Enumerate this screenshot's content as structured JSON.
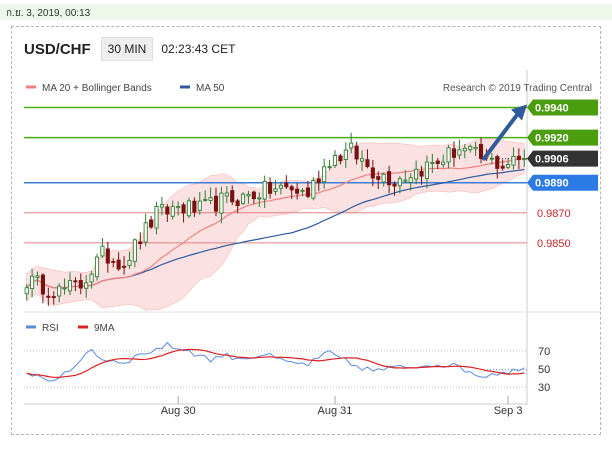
{
  "topbar": {
    "date": "ก.ย. 3, 2019, 00:13"
  },
  "header": {
    "symbol": "USD/CHF",
    "timeframe": "30 MIN",
    "time": "02:23:43 CET"
  },
  "colors": {
    "up": "#2e7d32",
    "down": "#7a1010",
    "ma20": "#f08080",
    "ma50": "#2d5b9e",
    "band_fill": "#fbdede",
    "resistance": "#4caf13",
    "support": "#e08080",
    "pivot": "#3b7dd8",
    "current": "#333333",
    "arrow": "#2f5b9c",
    "rsi": "#5b8be0",
    "rsi_ma": "#e02020"
  },
  "chart_data": [
    {
      "type": "line",
      "legend": [
        {
          "name": "MA 20 + Bollinger Bands",
          "color": "#f08080"
        },
        {
          "name": "MA 50",
          "color": "#2d5b9e"
        }
      ],
      "attribution": "Research © 2019 Trading Central",
      "x_ticks": [
        {
          "label": "Aug 30",
          "bar": 28
        },
        {
          "label": "Aug 31",
          "bar": 57
        },
        {
          "label": "Sep 3",
          "bar": 89
        }
      ],
      "ylim": [
        0.9812,
        0.9953
      ],
      "levels": [
        {
          "value": 0.994,
          "label": "0.9940",
          "kind": "resistance"
        },
        {
          "value": 0.992,
          "label": "0.9920",
          "kind": "resistance"
        },
        {
          "value": 0.9906,
          "label": "0.9906",
          "kind": "current"
        },
        {
          "value": 0.989,
          "label": "0.9890",
          "kind": "pivot"
        },
        {
          "value": 0.987,
          "label": "0.9870",
          "kind": "support"
        },
        {
          "value": 0.985,
          "label": "0.9850",
          "kind": "support"
        }
      ],
      "close_waypoints": [
        [
          0,
          0.9825
        ],
        [
          6,
          0.9818
        ],
        [
          10,
          0.9822
        ],
        [
          14,
          0.9842
        ],
        [
          18,
          0.9837
        ],
        [
          24,
          0.9869
        ],
        [
          28,
          0.9874
        ],
        [
          32,
          0.9872
        ],
        [
          36,
          0.9878
        ],
        [
          40,
          0.988
        ],
        [
          44,
          0.9885
        ],
        [
          48,
          0.9886
        ],
        [
          52,
          0.9883
        ],
        [
          56,
          0.9906
        ],
        [
          60,
          0.9911
        ],
        [
          64,
          0.9898
        ],
        [
          68,
          0.9892
        ],
        [
          72,
          0.9898
        ],
        [
          76,
          0.9904
        ],
        [
          80,
          0.9913
        ],
        [
          84,
          0.9906
        ],
        [
          88,
          0.9902
        ],
        [
          92,
          0.9906
        ]
      ],
      "projection": {
        "from_bar": 92,
        "from_value": 0.9906,
        "to_value": 0.994
      }
    },
    {
      "type": "line",
      "legend": [
        {
          "name": "RSI",
          "color": "#5b8be0"
        },
        {
          "name": "9MA",
          "color": "#e02020"
        }
      ],
      "ylim": [
        20,
        82
      ],
      "y_ticks": [
        70,
        50,
        30
      ],
      "rsi_waypoints": [
        [
          0,
          47
        ],
        [
          4,
          38
        ],
        [
          8,
          45
        ],
        [
          10,
          62
        ],
        [
          12,
          72
        ],
        [
          14,
          60
        ],
        [
          18,
          58
        ],
        [
          22,
          68
        ],
        [
          26,
          76
        ],
        [
          30,
          70
        ],
        [
          34,
          60
        ],
        [
          36,
          65
        ],
        [
          40,
          62
        ],
        [
          44,
          66
        ],
        [
          48,
          57
        ],
        [
          52,
          55
        ],
        [
          56,
          68
        ],
        [
          60,
          55
        ],
        [
          64,
          48
        ],
        [
          68,
          51
        ],
        [
          72,
          53
        ],
        [
          76,
          56
        ],
        [
          80,
          52
        ],
        [
          84,
          42
        ],
        [
          88,
          47
        ],
        [
          92,
          49
        ]
      ]
    }
  ]
}
